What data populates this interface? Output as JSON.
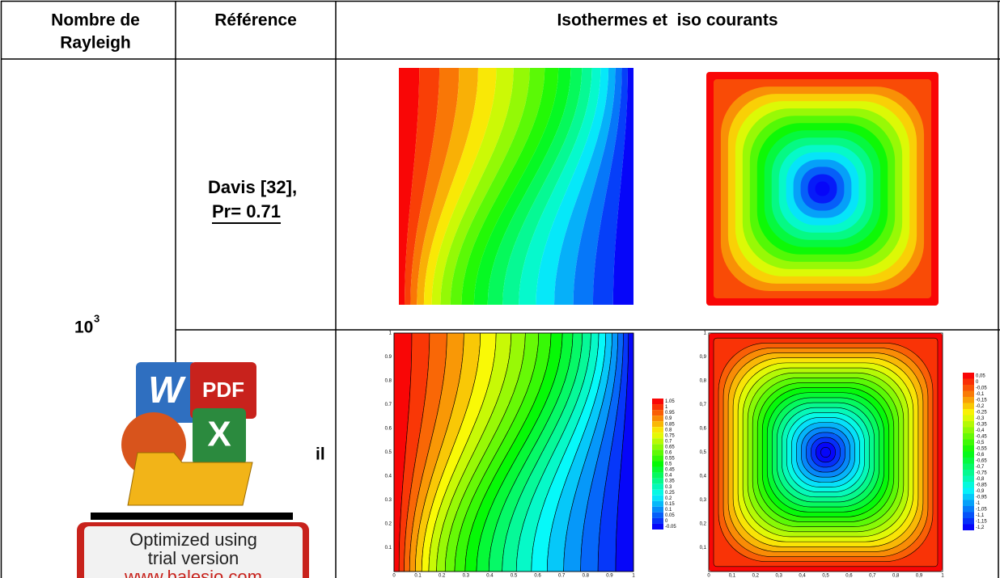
{
  "table": {
    "headers": [
      [
        "Nombre de",
        "Rayleigh"
      ],
      [
        "Référence"
      ],
      [
        "Isothermes et  iso courants"
      ]
    ],
    "rows": [
      {
        "rayleigh": {
          "base": "10",
          "exponent": "3"
        },
        "reference": [
          "Davis [32],",
          "Pr= 0.71"
        ]
      },
      {
        "reference": [
          "il"
        ]
      }
    ]
  },
  "plots": [
    {
      "xticks": [
        "0",
        "0.1",
        "0.2",
        "0.3",
        "0.4",
        "0.5",
        "0.6",
        "0.7",
        "0.8",
        "0.9",
        "1"
      ],
      "yticks": [
        "0.1",
        "0.2",
        "0.3",
        "0.4",
        "0.5",
        "0.6",
        "0.7",
        "0.8",
        "0.9",
        "1"
      ],
      "legend": [
        "1.05",
        "1",
        "0.95",
        "0.9",
        "0.85",
        "0.8",
        "0.75",
        "0.7",
        "0.65",
        "0.6",
        "0.55",
        "0.5",
        "0.45",
        "0.4",
        "0.35",
        "0.3",
        "0.25",
        "0.2",
        "0.15",
        "0.1",
        "0.05",
        "0",
        "-0.05"
      ]
    },
    {
      "xticks": [
        "0",
        "0,1",
        "0,2",
        "0,3",
        "0,4",
        "0,5",
        "0,6",
        "0,7",
        "0,8",
        "0,9",
        "1"
      ],
      "yticks": [
        "0,1",
        "0,2",
        "0,3",
        "0,4",
        "0,5",
        "0,6",
        "0,7",
        "0,8",
        "0,9",
        "1"
      ],
      "legend": [
        "0,05",
        "0",
        "-0,05",
        "-0,1",
        "-0,15",
        "-0,2",
        "-0,25",
        "-0,3",
        "-0,35",
        "-0,4",
        "-0,45",
        "-0,5",
        "-0,55",
        "-0,6",
        "-0,65",
        "-0,7",
        "-0,75",
        "-0,8",
        "-0,85",
        "-0,9",
        "-0,95",
        "-1",
        "-1,05",
        "-1,1",
        "-1,15",
        "-1,2"
      ]
    }
  ],
  "watermark": {
    "icon_labels": [
      "W",
      "PDF",
      "X"
    ],
    "lines": [
      "Optimized using",
      "trial version",
      "www.balesio.com"
    ]
  }
}
